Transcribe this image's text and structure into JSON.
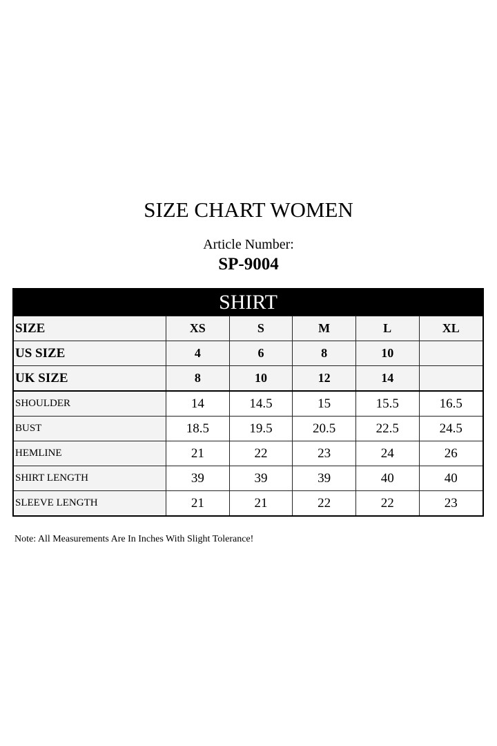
{
  "title": "SIZE CHART WOMEN",
  "article_label": "Article Number:",
  "article_number": "SP-9004",
  "table": {
    "band": "SHIRT",
    "header_rows": [
      {
        "label": "SIZE",
        "values": [
          "XS",
          "S",
          "M",
          "L",
          "XL"
        ]
      },
      {
        "label": "US SIZE",
        "values": [
          "4",
          "6",
          "8",
          "10",
          ""
        ]
      },
      {
        "label": "UK SIZE",
        "values": [
          "8",
          "10",
          "12",
          "14",
          ""
        ]
      }
    ],
    "rows": [
      {
        "label": "SHOULDER",
        "values": [
          "14",
          "14.5",
          "15",
          "15.5",
          "16.5"
        ]
      },
      {
        "label": "BUST",
        "values": [
          "18.5",
          "19.5",
          "20.5",
          "22.5",
          "24.5"
        ]
      },
      {
        "label": "HEMLINE",
        "values": [
          "21",
          "22",
          "23",
          "24",
          "26"
        ]
      },
      {
        "label": "SHIRT LENGTH",
        "values": [
          "39",
          "39",
          "39",
          "40",
          "40"
        ]
      },
      {
        "label": "SLEEVE LENGTH",
        "values": [
          "21",
          "21",
          "22",
          "22",
          "23"
        ]
      }
    ]
  },
  "note": "Note: All Measurements Are In Inches With Slight Tolerance!"
}
